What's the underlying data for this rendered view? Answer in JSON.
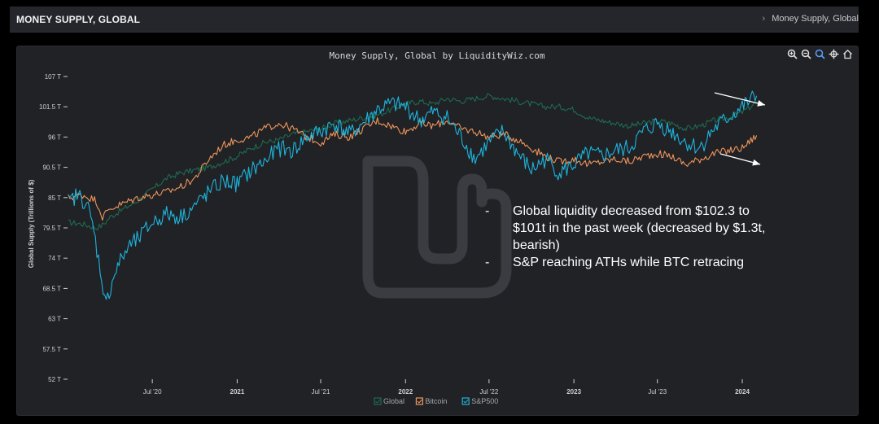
{
  "header": {
    "page_title": "MONEY SUPPLY, GLOBAL",
    "breadcrumb_sep": "›",
    "breadcrumb": "Money Supply, Global"
  },
  "toolbar": {
    "icons": [
      "zoom-in-icon",
      "zoom-out-icon",
      "search-icon",
      "pan-icon",
      "home-icon"
    ]
  },
  "annotation": {
    "dash": "-",
    "points": [
      "Global liquidity decreased from $102.3 to $101t in the past week (decreased by $1.3t, bearish)",
      "S&P reaching ATHs while BTC retracing"
    ]
  },
  "colors": {
    "background": "#202226",
    "global": "#1e6b4f",
    "bitcoin": "#f0955a",
    "sp500": "#1eb4dc",
    "text": "#d0d0d0",
    "arrow": "#ffffff"
  },
  "chart_data": {
    "type": "line",
    "title": "Money Supply, Global by LiquidityWiz.com",
    "xlabel": "",
    "ylabel": "Global Supply (Trillions of $)",
    "ylim": [
      52,
      107
    ],
    "yticks": [
      52,
      57.5,
      63,
      68.5,
      74,
      79.5,
      85,
      90.5,
      96,
      101.5,
      107
    ],
    "ytick_labels": [
      "52 T",
      "57.5 T",
      "63 T",
      "68.5 T",
      "74 T",
      "79.5 T",
      "85 T",
      "90.5 T",
      "96 T",
      "101.5 T",
      "107 T"
    ],
    "xlim": [
      "2020-01-01",
      "2024-03-01"
    ],
    "xticks": [
      {
        "date": "2020-07-01",
        "label": "Jul '20",
        "bold": false
      },
      {
        "date": "2021-01-01",
        "label": "2021",
        "bold": true
      },
      {
        "date": "2021-07-01",
        "label": "Jul '21",
        "bold": false
      },
      {
        "date": "2022-01-01",
        "label": "2022",
        "bold": true
      },
      {
        "date": "2022-07-01",
        "label": "Jul '22",
        "bold": false
      },
      {
        "date": "2023-01-01",
        "label": "2023",
        "bold": true
      },
      {
        "date": "2023-07-01",
        "label": "Jul '23",
        "bold": false
      },
      {
        "date": "2024-01-01",
        "label": "2024",
        "bold": true
      }
    ],
    "legend_position": "bottom-center",
    "grid": false,
    "series": [
      {
        "name": "Global",
        "color_key": "global",
        "x": [
          "2020-01-01",
          "2020-02-01",
          "2020-03-01",
          "2020-03-15",
          "2020-04-01",
          "2020-05-01",
          "2020-06-01",
          "2020-07-01",
          "2020-08-01",
          "2020-09-01",
          "2020-10-01",
          "2020-11-01",
          "2020-12-01",
          "2021-01-01",
          "2021-02-01",
          "2021-03-01",
          "2021-04-01",
          "2021-05-01",
          "2021-06-01",
          "2021-07-01",
          "2021-08-01",
          "2021-09-01",
          "2021-10-01",
          "2021-11-01",
          "2021-12-01",
          "2022-01-01",
          "2022-02-01",
          "2022-03-01",
          "2022-04-01",
          "2022-05-01",
          "2022-06-01",
          "2022-07-01",
          "2022-08-01",
          "2022-09-01",
          "2022-10-01",
          "2022-11-01",
          "2022-12-01",
          "2023-01-01",
          "2023-02-01",
          "2023-03-01",
          "2023-04-01",
          "2023-05-01",
          "2023-06-01",
          "2023-07-01",
          "2023-08-01",
          "2023-09-01",
          "2023-10-01",
          "2023-11-01",
          "2023-12-01",
          "2024-01-01",
          "2024-02-01"
        ],
        "values": [
          80.5,
          80.2,
          79.5,
          80.0,
          81.5,
          83.0,
          84.5,
          86.5,
          88.5,
          89.5,
          90.0,
          90.5,
          91.5,
          92.5,
          94.0,
          95.0,
          95.5,
          96.5,
          97.0,
          97.5,
          98.5,
          99.0,
          99.5,
          100.0,
          101.0,
          102.0,
          102.5,
          102.0,
          103.0,
          102.5,
          103.0,
          103.5,
          103.0,
          102.5,
          102.0,
          101.5,
          101.5,
          101.0,
          99.5,
          99.0,
          98.5,
          98.0,
          98.5,
          99.0,
          98.5,
          97.5,
          98.0,
          99.0,
          99.5,
          100.5,
          102.3
        ]
      },
      {
        "name": "Bitcoin",
        "color_key": "bitcoin",
        "x": [
          "2020-01-01",
          "2020-02-01",
          "2020-03-01",
          "2020-03-15",
          "2020-04-01",
          "2020-05-01",
          "2020-06-01",
          "2020-07-01",
          "2020-08-01",
          "2020-09-01",
          "2020-10-01",
          "2020-11-01",
          "2020-12-01",
          "2021-01-01",
          "2021-02-01",
          "2021-03-01",
          "2021-04-01",
          "2021-05-01",
          "2021-06-01",
          "2021-07-01",
          "2021-08-01",
          "2021-09-01",
          "2021-10-01",
          "2021-11-01",
          "2021-12-01",
          "2022-01-01",
          "2022-02-01",
          "2022-03-01",
          "2022-04-01",
          "2022-05-01",
          "2022-06-01",
          "2022-07-01",
          "2022-08-01",
          "2022-09-01",
          "2022-10-01",
          "2022-11-01",
          "2022-12-01",
          "2023-01-01",
          "2023-02-01",
          "2023-03-01",
          "2023-04-01",
          "2023-05-01",
          "2023-06-01",
          "2023-07-01",
          "2023-08-01",
          "2023-09-01",
          "2023-10-01",
          "2023-11-01",
          "2023-12-01",
          "2024-01-01",
          "2024-02-01"
        ],
        "values": [
          85.0,
          85.5,
          84.5,
          81.5,
          83.0,
          84.0,
          85.0,
          85.5,
          86.0,
          87.0,
          88.5,
          92.0,
          94.5,
          95.5,
          96.0,
          97.5,
          98.5,
          97.5,
          96.0,
          95.0,
          96.5,
          96.0,
          97.5,
          99.0,
          98.0,
          97.0,
          98.5,
          98.0,
          99.0,
          97.5,
          97.0,
          96.0,
          96.5,
          95.5,
          94.0,
          92.5,
          91.5,
          92.0,
          91.0,
          91.5,
          92.0,
          91.5,
          92.5,
          93.0,
          92.5,
          91.0,
          92.0,
          93.0,
          93.5,
          94.0,
          96.3
        ]
      },
      {
        "name": "S&P500",
        "color_key": "sp500",
        "x": [
          "2020-01-01",
          "2020-01-20",
          "2020-02-10",
          "2020-02-25",
          "2020-03-10",
          "2020-03-23",
          "2020-04-05",
          "2020-04-20",
          "2020-05-10",
          "2020-06-01",
          "2020-07-01",
          "2020-08-01",
          "2020-09-01",
          "2020-10-01",
          "2020-11-01",
          "2020-12-01",
          "2021-01-01",
          "2021-02-01",
          "2021-03-01",
          "2021-04-01",
          "2021-05-01",
          "2021-06-01",
          "2021-07-01",
          "2021-08-01",
          "2021-09-01",
          "2021-10-01",
          "2021-11-01",
          "2021-12-01",
          "2022-01-01",
          "2022-02-01",
          "2022-03-01",
          "2022-04-01",
          "2022-05-01",
          "2022-06-01",
          "2022-07-01",
          "2022-08-01",
          "2022-09-01",
          "2022-10-01",
          "2022-11-01",
          "2022-12-01",
          "2023-01-01",
          "2023-02-01",
          "2023-03-01",
          "2023-04-01",
          "2023-05-01",
          "2023-06-01",
          "2023-07-01",
          "2023-08-01",
          "2023-09-01",
          "2023-10-01",
          "2023-11-01",
          "2023-12-01",
          "2024-01-01",
          "2024-02-01"
        ],
        "values": [
          84.0,
          85.5,
          84.0,
          79.0,
          72.0,
          65.5,
          70.0,
          73.0,
          76.0,
          77.5,
          80.5,
          82.0,
          81.5,
          83.5,
          86.0,
          88.0,
          87.5,
          90.0,
          91.5,
          94.0,
          93.5,
          96.0,
          97.0,
          98.5,
          96.5,
          98.5,
          101.0,
          102.0,
          101.5,
          99.0,
          100.5,
          99.5,
          96.0,
          92.0,
          95.0,
          97.0,
          93.0,
          90.0,
          92.0,
          89.5,
          91.0,
          93.0,
          92.5,
          93.5,
          94.0,
          97.0,
          98.5,
          97.0,
          95.0,
          94.0,
          97.5,
          99.5,
          101.5,
          103.5
        ]
      }
    ]
  }
}
